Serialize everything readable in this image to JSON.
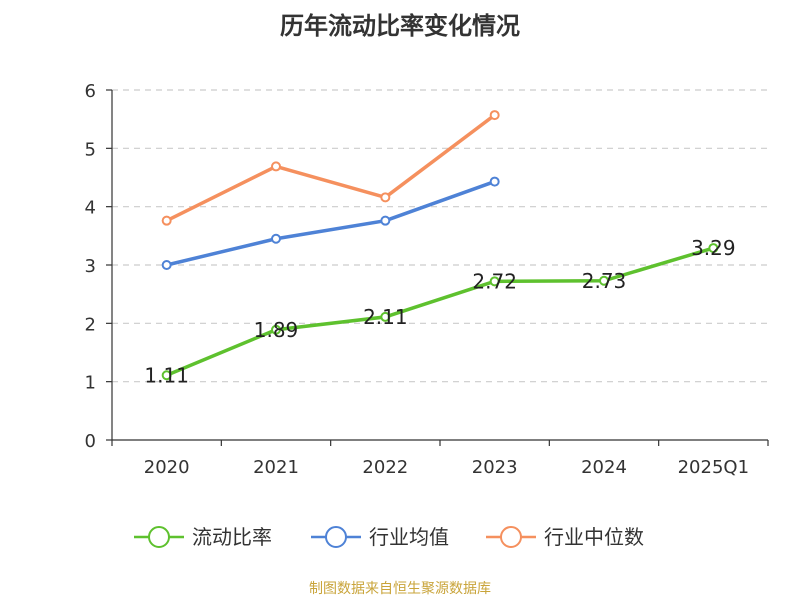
{
  "chart_data": {
    "type": "line",
    "title": "历年流动比率变化情况",
    "categories": [
      "2020",
      "2021",
      "2022",
      "2023",
      "2024",
      "2025Q1"
    ],
    "ylim": [
      0,
      6
    ],
    "yticks": [
      0,
      1,
      2,
      3,
      4,
      5,
      6
    ],
    "grid": true,
    "legend_position": "bottom",
    "series": [
      {
        "name": "流动比率",
        "color": "#5ec12e",
        "values": [
          1.11,
          1.89,
          2.11,
          2.72,
          2.73,
          3.29
        ],
        "labels": [
          "1.11",
          "1.89",
          "2.11",
          "2.72",
          "2.73",
          "3.29"
        ]
      },
      {
        "name": "行业均值",
        "color": "#4e82d6",
        "values": [
          3.0,
          3.45,
          3.76,
          4.43,
          null,
          null
        ]
      },
      {
        "name": "行业中位数",
        "color": "#f5905e",
        "values": [
          3.76,
          4.69,
          4.16,
          5.57,
          null,
          null
        ]
      }
    ]
  },
  "source": "制图数据来自恒生聚源数据库"
}
